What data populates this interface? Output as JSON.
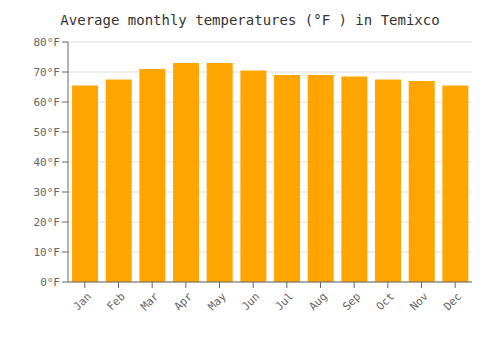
{
  "chart_data": {
    "type": "bar",
    "title": "Average monthly temperatures (°F ) in Temixco",
    "categories": [
      "Jan",
      "Feb",
      "Mar",
      "Apr",
      "May",
      "Jun",
      "Jul",
      "Aug",
      "Sep",
      "Oct",
      "Nov",
      "Dec"
    ],
    "values": [
      65.5,
      67.5,
      71.0,
      73.0,
      73.0,
      70.5,
      69.0,
      69.0,
      68.5,
      67.5,
      67.0,
      65.5
    ],
    "color": "#FFA500",
    "ylim": [
      0,
      80
    ],
    "yticks": [
      {
        "value": 0,
        "label": "0°F"
      },
      {
        "value": 10,
        "label": "10°F"
      },
      {
        "value": 20,
        "label": "20°F"
      },
      {
        "value": 30,
        "label": "30°F"
      },
      {
        "value": 40,
        "label": "40°F"
      },
      {
        "value": 50,
        "label": "50°F"
      },
      {
        "value": 60,
        "label": "60°F"
      },
      {
        "value": 70,
        "label": "70°F"
      },
      {
        "value": 80,
        "label": "80°F"
      }
    ],
    "grid": true
  }
}
